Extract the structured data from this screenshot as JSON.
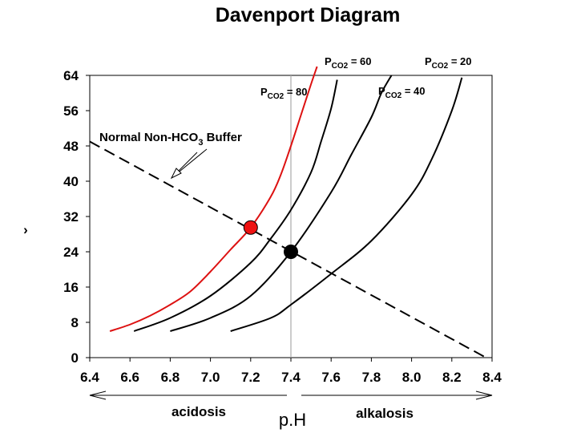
{
  "chart_data": {
    "type": "line",
    "title": "Davenport Diagram",
    "xlabel": "p.H",
    "ylabel": "›",
    "xlim": [
      6.4,
      8.4
    ],
    "ylim": [
      0,
      64
    ],
    "x_ticks": [
      "6.4",
      "6.6",
      "6.8",
      "7.0",
      "7.2",
      "7.4",
      "7.6",
      "7.8",
      "8.0",
      "8.2",
      "8.4"
    ],
    "y_ticks": [
      "0",
      "8",
      "16",
      "24",
      "32",
      "40",
      "48",
      "56",
      "64"
    ],
    "series": [
      {
        "name": "PCO2 = 80",
        "color": "#dd1111",
        "x": [
          6.5,
          6.6,
          6.7,
          6.8,
          6.9,
          7.0,
          7.1,
          7.2,
          7.3,
          7.35,
          7.4,
          7.45,
          7.5,
          7.53
        ],
        "y": [
          6,
          7.5,
          9.5,
          12,
          15,
          19.5,
          24.5,
          29.5,
          36.5,
          41.5,
          48,
          55,
          62,
          66
        ]
      },
      {
        "name": "PCO2 = 60",
        "color": "#000000",
        "x": [
          6.62,
          6.8,
          7.0,
          7.2,
          7.3,
          7.4,
          7.5,
          7.55,
          7.6,
          7.63
        ],
        "y": [
          6,
          9,
          14,
          21.5,
          27,
          33.5,
          42,
          49,
          56.5,
          63
        ]
      },
      {
        "name": "PCO2 = 40",
        "color": "#000000",
        "x": [
          6.8,
          7.0,
          7.2,
          7.4,
          7.6,
          7.7,
          7.8,
          7.85,
          7.9
        ],
        "y": [
          6,
          9,
          14,
          24,
          37.5,
          46,
          54.5,
          60,
          64
        ]
      },
      {
        "name": "PCO2 = 20",
        "color": "#000000",
        "x": [
          7.1,
          7.3,
          7.4,
          7.6,
          7.8,
          8.0,
          8.1,
          8.2,
          8.25
        ],
        "y": [
          6,
          9,
          12,
          19,
          26.5,
          37,
          45,
          56,
          63.5
        ]
      }
    ],
    "buffer_line": {
      "name": "Normal Non-HCO3 Buffer",
      "x": [
        6.4,
        8.37
      ],
      "y": [
        49,
        0
      ]
    },
    "points": [
      {
        "name": "red-point",
        "x": 7.2,
        "y": 29.5,
        "color": "#ee1111"
      },
      {
        "name": "normal-point",
        "x": 7.4,
        "y": 24,
        "color": "#000000"
      }
    ],
    "annotations": {
      "buffer_text": "Normal Non-HCO",
      "buffer_sub": "3",
      "buffer_tail": " Buffer",
      "pco2_80": {
        "main": "P",
        "sub": "CO2",
        "value": " = 80"
      },
      "pco2_60": {
        "main": "P",
        "sub": "CO2",
        "value": " = 60"
      },
      "pco2_40": {
        "main": "P",
        "sub": "CO2",
        "value": " = 40"
      },
      "pco2_20": {
        "main": "P",
        "sub": "CO2",
        "value": " = 20"
      },
      "acidosis": "acidosis",
      "alkalosis": "alkalosis"
    },
    "grid": false,
    "reference_line_x": 7.4
  }
}
